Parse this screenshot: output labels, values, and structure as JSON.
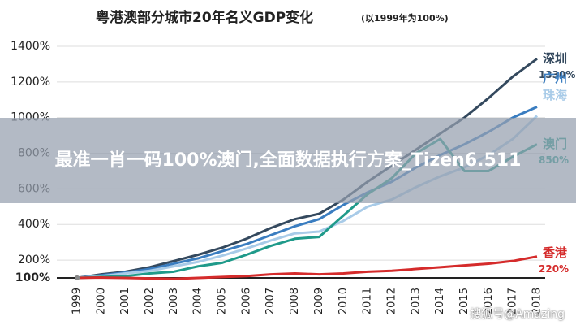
{
  "chart_data": {
    "type": "line",
    "title": "粤港澳部分城市20年名义GDP变化",
    "subtitle": "(以1999年为100%)",
    "categories": [
      "1999",
      "2000",
      "2001",
      "2002",
      "2003",
      "2004",
      "2005",
      "2006",
      "2007",
      "2008",
      "2009",
      "2010",
      "2011",
      "2012",
      "2013",
      "2014",
      "2015",
      "2016",
      "2017",
      "2018"
    ],
    "ylim": [
      100,
      1400
    ],
    "yticks": [
      {
        "value": 100,
        "label": "100%"
      },
      {
        "value": 200,
        "label": "200%"
      },
      {
        "value": 400,
        "label": "400%"
      },
      {
        "value": 600,
        "label": "600%"
      },
      {
        "value": 800,
        "label": "800%"
      },
      {
        "value": 1000,
        "label": "1000%"
      },
      {
        "value": 1200,
        "label": "1200%"
      },
      {
        "value": 1400,
        "label": "1400%"
      }
    ],
    "grid": true,
    "series": [
      {
        "name": "深圳",
        "color": "#34495e",
        "values": [
          100,
          120,
          135,
          160,
          195,
          230,
          270,
          320,
          380,
          430,
          460,
          540,
          640,
          730,
          820,
          910,
          1000,
          1110,
          1230,
          1330
        ],
        "value_labels": [
          null,
          null,
          null,
          null,
          null,
          null,
          null,
          null,
          null,
          null,
          null,
          null,
          null,
          null,
          null,
          null,
          null,
          null,
          null,
          "1330%"
        ]
      },
      {
        "name": "广州",
        "color": "#3a7dc0",
        "values": [
          100,
          115,
          130,
          150,
          180,
          210,
          250,
          290,
          340,
          390,
          430,
          510,
          580,
          640,
          720,
          790,
          850,
          920,
          1000,
          1060
        ]
      },
      {
        "name": "珠海",
        "color": "#a8cbe8",
        "values": [
          100,
          110,
          125,
          140,
          165,
          190,
          225,
          265,
          310,
          350,
          360,
          420,
          500,
          540,
          610,
          670,
          720,
          790,
          880,
          1010
        ]
      },
      {
        "name": "澳门",
        "color": "#1f9a8a",
        "values": [
          100,
          105,
          110,
          125,
          135,
          165,
          185,
          230,
          280,
          320,
          330,
          450,
          570,
          660,
          800,
          880,
          700,
          700,
          780,
          850
        ],
        "value_labels": [
          null,
          null,
          null,
          null,
          null,
          null,
          null,
          null,
          null,
          null,
          null,
          null,
          null,
          null,
          null,
          null,
          null,
          null,
          null,
          "850%"
        ]
      },
      {
        "name": "香港",
        "color": "#d52b2b",
        "values": [
          100,
          102,
          100,
          97,
          95,
          100,
          105,
          110,
          120,
          125,
          120,
          125,
          135,
          140,
          150,
          160,
          170,
          180,
          195,
          220
        ],
        "value_labels": [
          null,
          null,
          null,
          null,
          null,
          null,
          null,
          null,
          null,
          null,
          null,
          null,
          null,
          null,
          null,
          null,
          null,
          null,
          null,
          "220%"
        ]
      }
    ]
  },
  "overlay": {
    "text": "最准一肖一码100%澳门,全面数据执行方案_Tizen6.511",
    "watermark": "搜狐号@Amazing"
  }
}
